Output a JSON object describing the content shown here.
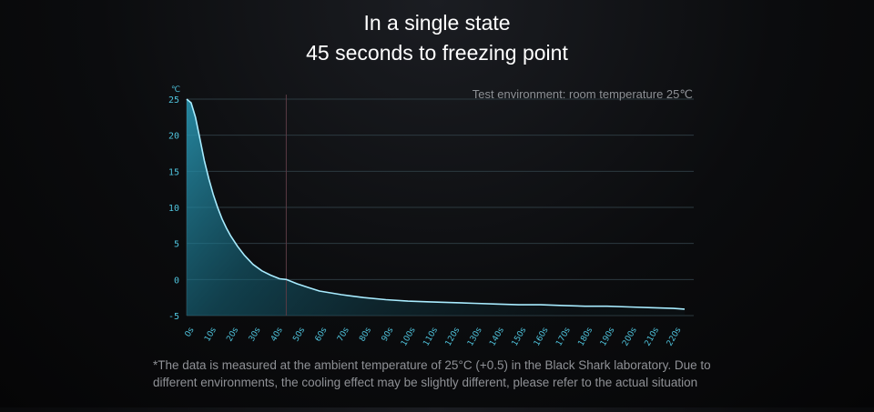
{
  "title_line1": "In a single state",
  "title_line2": "45 seconds to freezing point",
  "environment_note": "Test environment: room temperature 25℃",
  "footnote": "*The data is measured at the ambient temperature of 25°C (+0.5) in the Black Shark laboratory. Due to different environments, the cooling effect may be slightly different, please refer to the actual situation",
  "colors": {
    "line": "#a8ecff",
    "fill": "#1f7f99",
    "grid": "#2c3a40",
    "tick": "#4fc3dc",
    "marker": "#5a3b44"
  },
  "chart_data": {
    "type": "area",
    "ylabel": "℃",
    "ylim": [
      -5,
      25
    ],
    "xlim": [
      0,
      225
    ],
    "yticks": [
      25,
      20,
      15,
      10,
      5,
      0,
      -5
    ],
    "ytick_labels": [
      "25",
      "20",
      "15",
      "10",
      "5",
      "0",
      "-5"
    ],
    "xticks": [
      0,
      10,
      20,
      30,
      40,
      50,
      60,
      70,
      80,
      90,
      100,
      110,
      120,
      130,
      140,
      150,
      160,
      170,
      180,
      190,
      200,
      210,
      220
    ],
    "xtick_labels": [
      "0s",
      "10s",
      "20s",
      "30s",
      "40s",
      "50s",
      "60s",
      "70s",
      "80s",
      "90s",
      "100s",
      "110s",
      "120s",
      "130s",
      "140s",
      "150s",
      "160s",
      "170s",
      "180s",
      "190s",
      "200s",
      "210s",
      "220s"
    ],
    "reference_line_x": 45,
    "grid": true,
    "x": [
      0,
      2,
      4,
      6,
      8,
      10,
      12,
      14,
      16,
      18,
      20,
      23,
      26,
      30,
      34,
      38,
      42,
      45,
      50,
      55,
      60,
      70,
      80,
      90,
      100,
      110,
      120,
      130,
      140,
      150,
      160,
      170,
      180,
      190,
      200,
      210,
      220,
      225
    ],
    "y": [
      25,
      24.5,
      22.5,
      19.5,
      16.5,
      14,
      11.8,
      10,
      8.4,
      7.1,
      6,
      4.6,
      3.4,
      2.1,
      1.2,
      0.6,
      0.1,
      0,
      -0.6,
      -1.1,
      -1.6,
      -2.1,
      -2.5,
      -2.8,
      -3.0,
      -3.1,
      -3.2,
      -3.3,
      -3.4,
      -3.5,
      -3.5,
      -3.6,
      -3.7,
      -3.7,
      -3.8,
      -3.9,
      -4.0,
      -4.1
    ]
  }
}
